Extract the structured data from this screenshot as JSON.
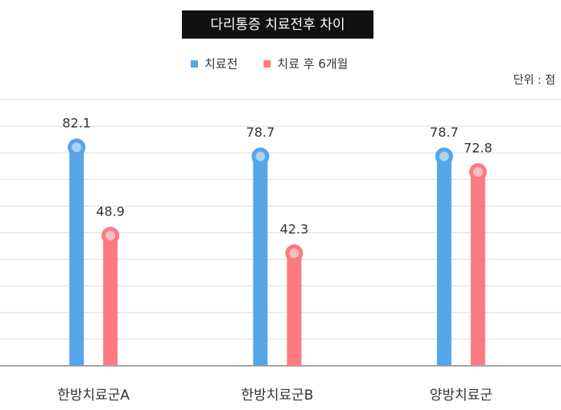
{
  "chart_data": {
    "type": "bar",
    "title": "다리통증 치료전후 차이",
    "unit_label": "단위 : 점",
    "categories": [
      "한방치료군A",
      "한방치료군B",
      "양방치료군"
    ],
    "series": [
      {
        "name": "치료전",
        "color": "#56a5e8",
        "values": [
          82.1,
          78.7,
          78.7
        ]
      },
      {
        "name": "치료 후 6개월",
        "color": "#fb7b80",
        "values": [
          48.9,
          42.3,
          72.8
        ]
      }
    ],
    "ylim": [
      0,
      100
    ],
    "yticks": [
      0,
      10,
      20,
      30,
      40,
      50,
      60,
      70,
      80,
      90,
      100
    ],
    "grid": true
  }
}
